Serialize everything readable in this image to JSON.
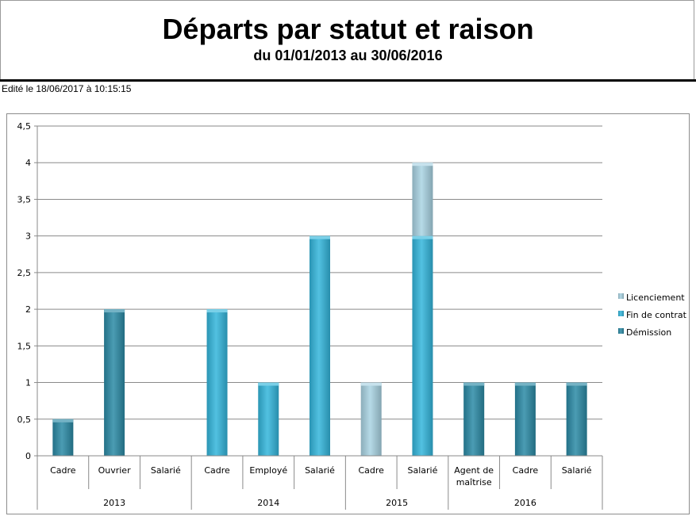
{
  "report": {
    "title": "Départs par statut et raison",
    "subtitle": "du 01/01/2013 au 30/06/2016",
    "edited": "Edité le 18/06/2017 à 10:15:15"
  },
  "chart_data": {
    "type": "bar",
    "stacked": true,
    "grid": true,
    "legend_position": "right",
    "ylim": [
      0,
      4.5
    ],
    "yticks": [
      "0",
      "0,5",
      "1",
      "1,5",
      "2",
      "2,5",
      "3",
      "3,5",
      "4",
      "4,5"
    ],
    "categories": [
      "Cadre",
      "Ouvrier",
      "Salarié",
      "Cadre",
      "Employé",
      "Salarié",
      "Cadre",
      "Salarié",
      "Agent de maîtrise",
      "Cadre",
      "Salarié"
    ],
    "category_lines": [
      [
        "Cadre"
      ],
      [
        "Ouvrier"
      ],
      [
        "Salarié"
      ],
      [
        "Cadre"
      ],
      [
        "Employé"
      ],
      [
        "Salarié"
      ],
      [
        "Cadre"
      ],
      [
        "Salarié"
      ],
      [
        "Agent de",
        "maîtrise"
      ],
      [
        "Cadre"
      ],
      [
        "Salarié"
      ]
    ],
    "groups": [
      {
        "label": "2013",
        "count": 3
      },
      {
        "label": "2014",
        "count": 3
      },
      {
        "label": "2015",
        "count": 2
      },
      {
        "label": "2016",
        "count": 3
      }
    ],
    "series": [
      {
        "name": "Démission",
        "color": "#2b8aa6",
        "values": [
          0.5,
          2,
          0,
          0,
          0,
          0,
          0,
          0,
          1,
          1,
          1
        ]
      },
      {
        "name": "Fin de contrat",
        "color": "#33b6dc",
        "values": [
          0,
          0,
          0,
          2,
          1,
          3,
          0,
          3,
          0,
          0,
          0
        ]
      },
      {
        "name": "Licenciement",
        "color": "#a9d3e3",
        "values": [
          0,
          0,
          0,
          0,
          0,
          0,
          1,
          1,
          0,
          0,
          0
        ]
      }
    ],
    "legend_order": [
      "Licenciement",
      "Fin de contrat",
      "Démission"
    ]
  }
}
